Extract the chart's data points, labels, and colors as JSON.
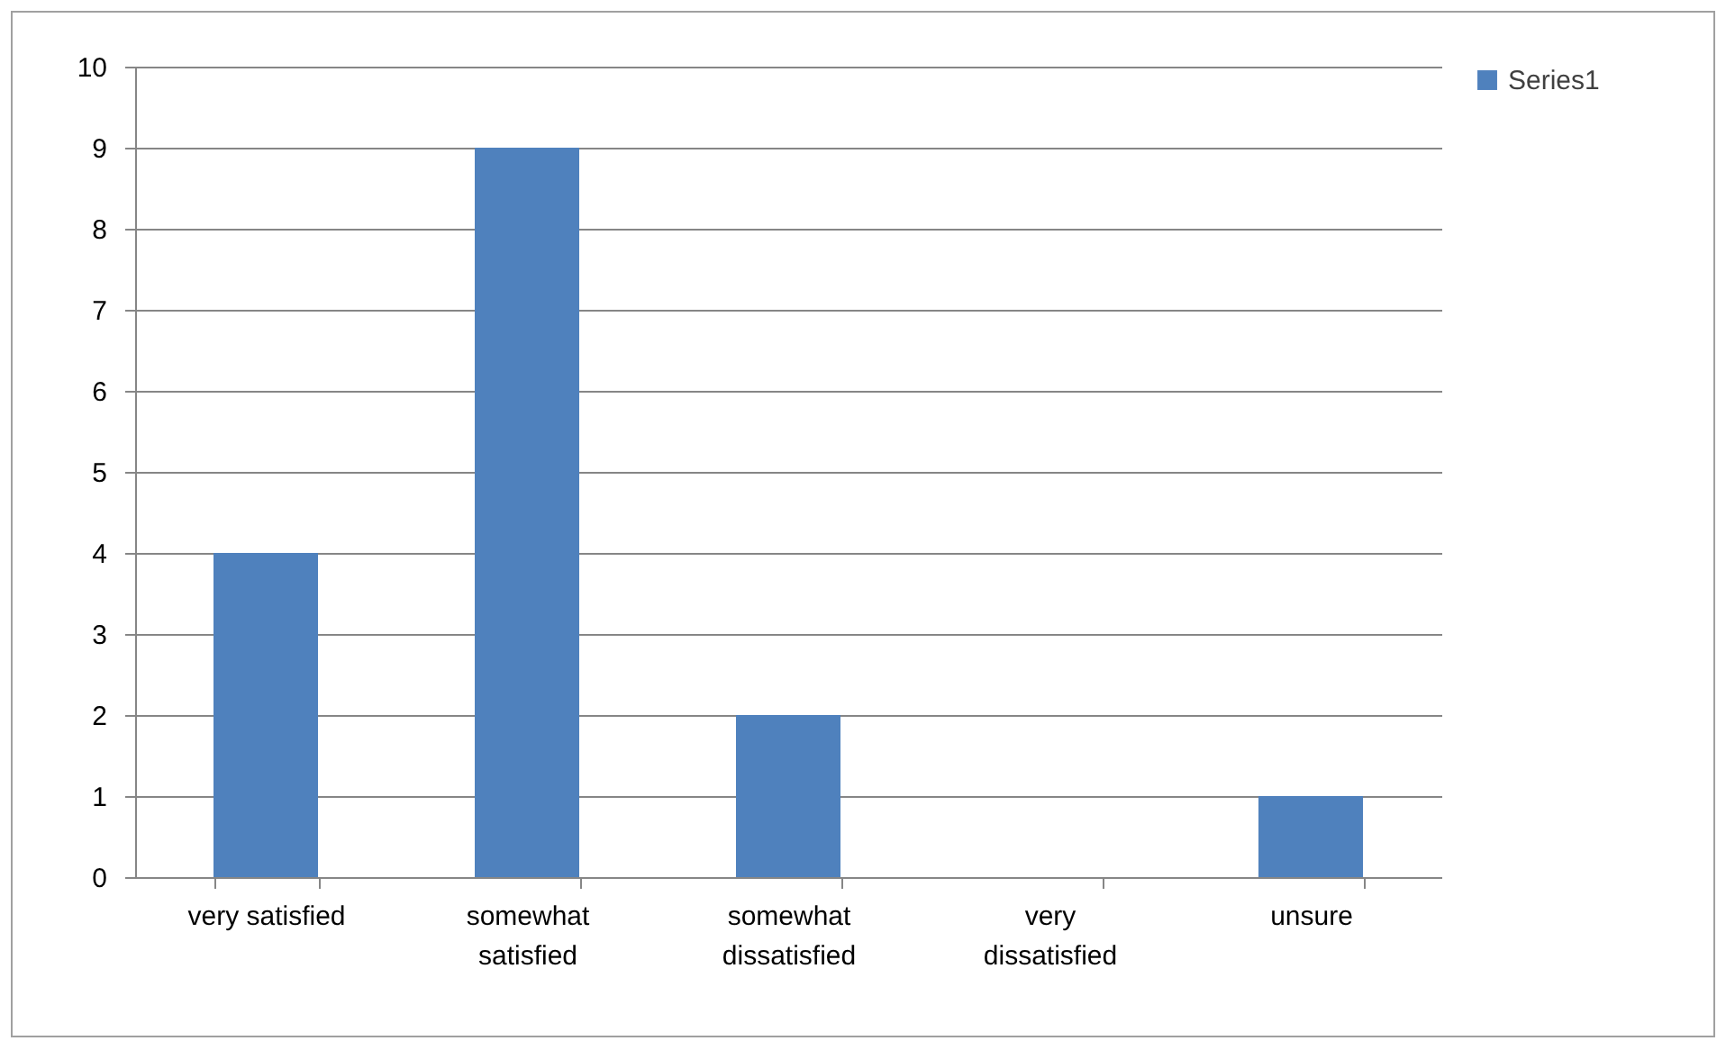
{
  "chart_data": {
    "type": "bar",
    "categories": [
      "very satisfied",
      "somewhat satisfied",
      "somewhat dissatisfied",
      "very dissatisfied",
      "unsure"
    ],
    "series": [
      {
        "name": "Series1",
        "color": "#4f81bd",
        "values": [
          4,
          9,
          2,
          0,
          1
        ]
      }
    ],
    "ylim": [
      0,
      10
    ],
    "yticks": [
      0,
      1,
      2,
      3,
      4,
      5,
      6,
      7,
      8,
      9,
      10
    ],
    "grid": "y",
    "legend": "right"
  }
}
